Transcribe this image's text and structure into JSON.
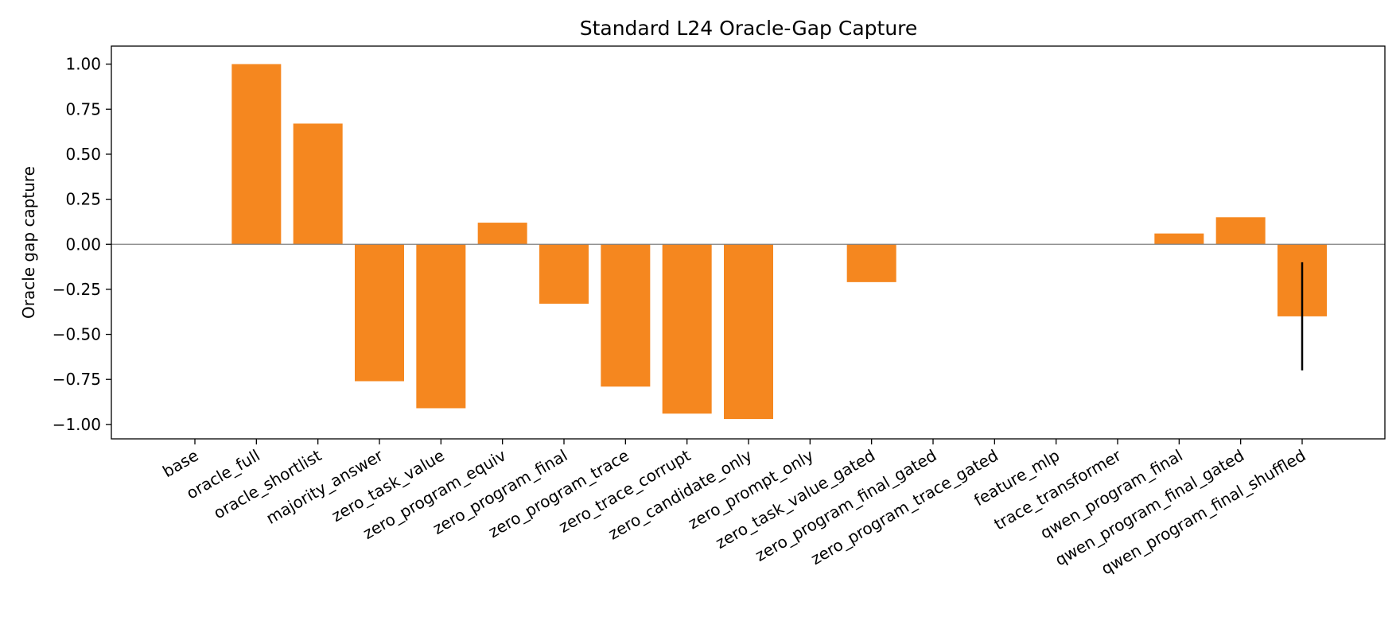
{
  "chart_data": {
    "type": "bar",
    "title": "Standard L24 Oracle-Gap Capture",
    "xlabel": "",
    "ylabel": "Oracle gap capture",
    "ylim": [
      -1.08,
      1.1
    ],
    "yticks": [
      1.0,
      0.75,
      0.5,
      0.25,
      0.0,
      -0.25,
      -0.5,
      -0.75,
      -1.0
    ],
    "ytick_labels": [
      "1.00",
      "0.75",
      "0.50",
      "0.25",
      "0.00",
      "−0.25",
      "−0.50",
      "−0.75",
      "−1.00"
    ],
    "grid": false,
    "zero_line": true,
    "bar_color": "#f5871f",
    "error_color": "#000000",
    "categories": [
      "base",
      "oracle_full",
      "oracle_shortlist",
      "majority_answer",
      "zero_task_value",
      "zero_program_equiv",
      "zero_program_final",
      "zero_program_trace",
      "zero_trace_corrupt",
      "zero_candidate_only",
      "zero_prompt_only",
      "zero_task_value_gated",
      "zero_program_final_gated",
      "zero_program_trace_gated",
      "feature_mlp",
      "trace_transformer",
      "qwen_program_final",
      "qwen_program_final_gated",
      "qwen_program_final_shuffled"
    ],
    "values": [
      0.0,
      1.0,
      0.67,
      -0.76,
      -0.91,
      0.12,
      -0.33,
      -0.79,
      -0.94,
      -0.97,
      0.0,
      -0.21,
      0.0,
      0.0,
      0.0,
      0.0,
      0.06,
      0.15,
      -0.4
    ],
    "errors": [
      null,
      null,
      null,
      null,
      null,
      null,
      null,
      null,
      null,
      null,
      null,
      null,
      null,
      null,
      null,
      null,
      null,
      null,
      {
        "low": -0.7,
        "high": -0.1
      }
    ]
  }
}
